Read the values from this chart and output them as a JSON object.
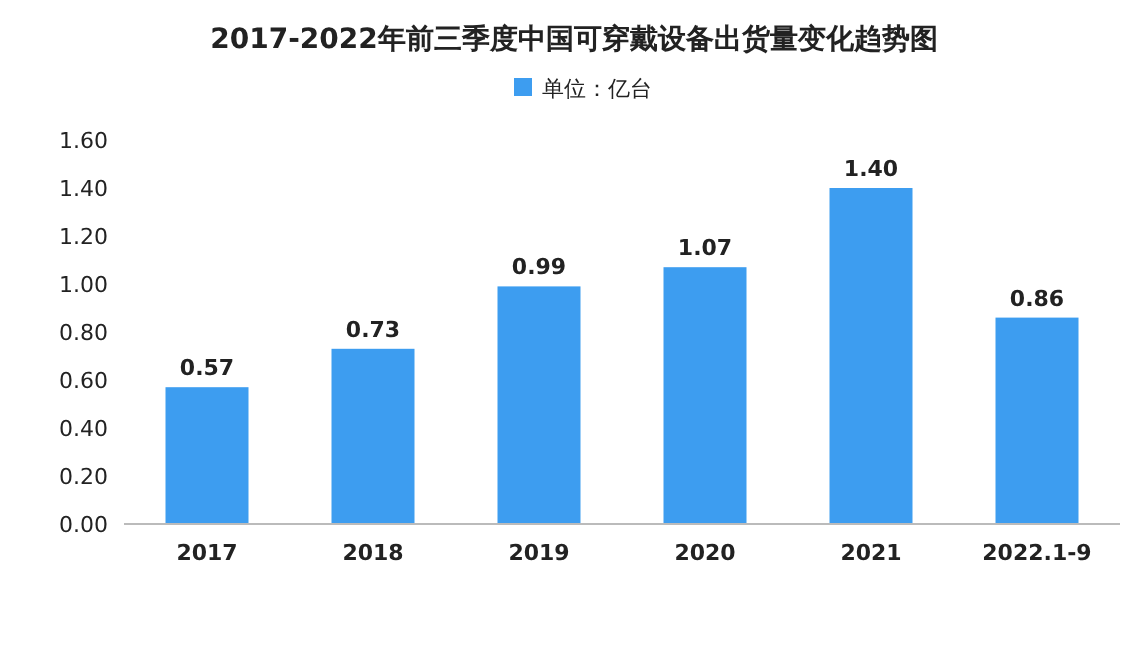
{
  "chart_data": {
    "type": "bar",
    "title": "2017-2022年前三季度中国可穿戴设备出货量变化趋势图",
    "categories": [
      "2017",
      "2018",
      "2019",
      "2020",
      "2021",
      "2022.1-9"
    ],
    "series": [
      {
        "name": "单位：亿台",
        "color": "#3d9df0",
        "values": [
          0.57,
          0.73,
          0.99,
          1.07,
          1.4,
          0.86
        ],
        "value_labels": [
          "0.57",
          "0.73",
          "0.99",
          "1.07",
          "1.40",
          "0.86"
        ]
      }
    ],
    "ylim": [
      0,
      1.6
    ],
    "yticks": [
      {
        "value": 0,
        "label": "0.00"
      },
      {
        "value": 0.2,
        "label": "0.20"
      },
      {
        "value": 0.4,
        "label": "0.40"
      },
      {
        "value": 0.6,
        "label": "0.60"
      },
      {
        "value": 0.8,
        "label": "0.80"
      },
      {
        "value": 1.0,
        "label": "1.00"
      },
      {
        "value": 1.2,
        "label": "1.20"
      },
      {
        "value": 1.4,
        "label": "1.40"
      },
      {
        "value": 1.6,
        "label": "1.60"
      }
    ],
    "legend": "top"
  }
}
